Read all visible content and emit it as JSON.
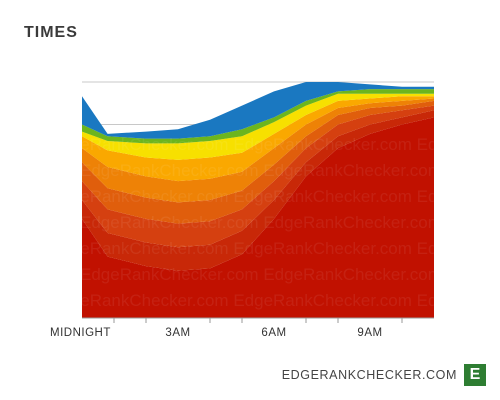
{
  "title": "TIMES",
  "brand": {
    "text": "EDGERANKCHECKER.COM",
    "logo_letter": "E",
    "logo_color": "#2e7d32"
  },
  "chart_data": {
    "type": "area",
    "stacked": true,
    "title": "TIMES",
    "xlabel": "",
    "ylabel": "",
    "x_hours": [
      0,
      0.8,
      2,
      3,
      4,
      5,
      6,
      7,
      8,
      9,
      10,
      11
    ],
    "x_ticks": [
      {
        "hour": 0,
        "label": "MIDNIGHT"
      },
      {
        "hour": 3,
        "label": "3AM"
      },
      {
        "hour": 6,
        "label": "6AM"
      },
      {
        "hour": 9,
        "label": "9AM"
      }
    ],
    "x_minor_ticks": [
      1,
      2,
      4,
      5,
      7,
      8,
      10
    ],
    "ylim": [
      0,
      100
    ],
    "y_gridlines": [
      82,
      100
    ],
    "y_tick_labels_shown": false,
    "watermark": "EdgeRankChecker.com",
    "series": [
      {
        "color": "#c11100",
        "values": [
          42,
          26,
          22,
          20,
          21,
          27,
          42,
          60,
          72,
          78,
          82,
          85
        ]
      },
      {
        "color": "#c82808",
        "values": [
          8,
          10,
          10,
          10,
          10,
          10,
          8,
          6,
          5,
          4,
          3,
          3
        ]
      },
      {
        "color": "#d54010",
        "values": [
          8,
          10,
          10,
          10,
          10,
          9,
          8,
          6,
          5,
          4,
          3,
          2
        ]
      },
      {
        "color": "#e05e0c",
        "values": [
          8,
          9,
          9,
          9,
          9,
          8,
          7,
          5,
          4,
          3,
          2,
          2
        ]
      },
      {
        "color": "#ee8206",
        "values": [
          6,
          9,
          9,
          9,
          9,
          8,
          7,
          5,
          3,
          2,
          2,
          1
        ]
      },
      {
        "color": "#faa800",
        "values": [
          5,
          7,
          8,
          9,
          9,
          8,
          6,
          4,
          3,
          2,
          2,
          1
        ]
      },
      {
        "color": "#f7e000",
        "values": [
          2,
          4,
          6,
          7,
          7,
          7,
          5,
          4,
          3,
          2,
          1,
          1
        ]
      },
      {
        "color": "#6cb51e",
        "values": [
          3,
          2,
          2,
          2,
          2,
          3,
          2,
          2,
          1,
          2,
          2,
          2
        ]
      },
      {
        "color": "#1a78c1",
        "values": [
          12,
          1,
          3,
          4,
          7,
          10,
          11,
          8,
          4,
          2,
          1,
          1
        ]
      }
    ]
  }
}
